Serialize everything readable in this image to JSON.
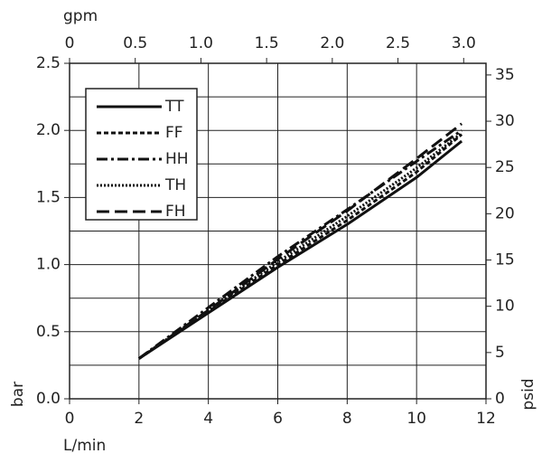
{
  "chart_data": {
    "type": "line",
    "x_label": "L/min",
    "x2_label": "gpm",
    "y_label": "bar",
    "y2_label": "psid",
    "xlim": [
      0,
      12
    ],
    "xticks": [
      0,
      2,
      4,
      6,
      8,
      10,
      12
    ],
    "x2lim": [
      0,
      3.17
    ],
    "x2ticks": [
      0,
      0.5,
      {
        "value": 1,
        "label": "1.0"
      },
      1.5,
      {
        "value": 2,
        "label": "2.0"
      },
      2.5,
      {
        "value": 3,
        "label": "3.0"
      }
    ],
    "ylim": [
      0,
      2.5
    ],
    "yticks": [
      {
        "value": 0,
        "label": "0.0"
      },
      0.5,
      {
        "value": 1,
        "label": "1.0"
      },
      1.5,
      {
        "value": 2,
        "label": "2.0"
      },
      2.5
    ],
    "yminor": [
      0.25,
      0.75,
      1.25,
      1.75,
      2.25
    ],
    "y2lim": [
      0,
      36.26
    ],
    "y2ticks": [
      0,
      5,
      10,
      15,
      20,
      25,
      30,
      35
    ],
    "grid": true,
    "legend": "upper left",
    "x": [
      2,
      4,
      6,
      8,
      10,
      11.3
    ],
    "series": [
      {
        "name": "TT",
        "color": "#111",
        "dash": "none",
        "values": [
          0.3,
          0.64,
          0.98,
          1.3,
          1.65,
          1.92
        ]
      },
      {
        "name": "FF",
        "color": "#111",
        "dash": "5 3",
        "values": [
          0.3,
          0.65,
          1.0,
          1.33,
          1.69,
          1.97
        ]
      },
      {
        "name": "HH",
        "color": "#111",
        "dash": "12 4 3 4",
        "values": [
          0.3,
          0.68,
          1.06,
          1.41,
          1.77,
          2.0
        ]
      },
      {
        "name": "TH",
        "color": "#111",
        "dash": "2 2",
        "values": [
          0.3,
          0.66,
          1.02,
          1.36,
          1.72,
          1.98
        ]
      },
      {
        "name": "FH",
        "color": "#111",
        "dash": "14 6",
        "values": [
          0.3,
          0.66,
          1.04,
          1.4,
          1.79,
          2.05
        ]
      }
    ]
  }
}
